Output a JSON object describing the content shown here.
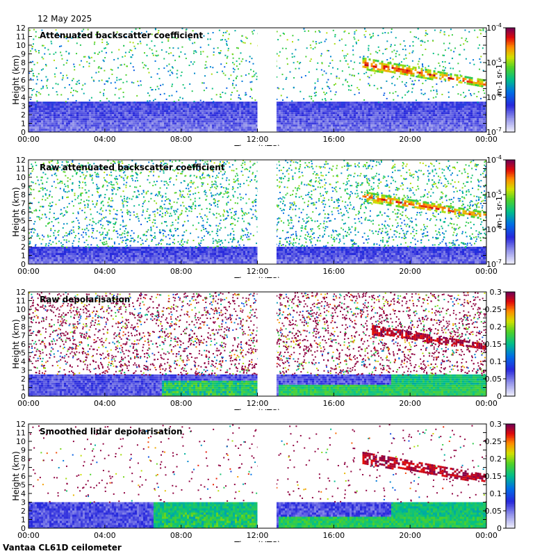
{
  "date_label": "12 May 2025",
  "footer": "Vantaa CL61D ceilometer",
  "chart_data": [
    {
      "type": "heatmap",
      "title": "Attenuated backscatter coefficient",
      "xlabel": "Time (UTC)",
      "ylabel": "Height (km)",
      "x_ticks": [
        "00:00",
        "04:00",
        "08:00",
        "12:00",
        "16:00",
        "20:00",
        "00:00"
      ],
      "x_range_hours": [
        0,
        24
      ],
      "y_ticks": [
        0,
        1,
        2,
        3,
        4,
        5,
        6,
        7,
        8,
        9,
        10,
        11,
        12
      ],
      "ylim": [
        0,
        12
      ],
      "data_gap_hours": [
        12.0,
        13.0
      ],
      "colorbar": {
        "scale": "log",
        "range": [
          1e-07,
          0.0001
        ],
        "ticks": [
          "10-7",
          "10-6",
          "10-5",
          "10-4"
        ],
        "units": "m-1 sr-1"
      },
      "features": {
        "boundary_layer_top_km": 3.5,
        "noise_density": 0.25,
        "cloud_layer": {
          "start_h": 17.5,
          "end_h": 24,
          "top_km": [
            8.6,
            6.0
          ],
          "bottom_km": [
            7.3,
            5.3
          ]
        }
      }
    },
    {
      "type": "heatmap",
      "title": "Raw attenuated backscatter coefficient",
      "xlabel": "Time (UTC)",
      "ylabel": "Height (km)",
      "x_ticks": [
        "00:00",
        "04:00",
        "08:00",
        "12:00",
        "16:00",
        "20:00",
        "00:00"
      ],
      "x_range_hours": [
        0,
        24
      ],
      "y_ticks": [
        0,
        1,
        2,
        3,
        4,
        5,
        6,
        7,
        8,
        9,
        10,
        11,
        12
      ],
      "ylim": [
        0,
        12
      ],
      "data_gap_hours": [
        12.0,
        13.0
      ],
      "colorbar": {
        "scale": "log",
        "range": [
          1e-07,
          0.0001
        ],
        "ticks": [
          "10-7",
          "10-6",
          "10-5",
          "10-4"
        ],
        "units": "m-1 sr-1"
      },
      "features": {
        "boundary_layer_top_km": 2.0,
        "noise_density": 0.7,
        "cloud_layer": {
          "start_h": 17.5,
          "end_h": 24,
          "top_km": [
            8.4,
            6.0
          ],
          "bottom_km": [
            7.3,
            5.3
          ]
        }
      }
    },
    {
      "type": "heatmap",
      "title": "Raw depolarisation",
      "xlabel": "Time (UTC)",
      "ylabel": "Height (km)",
      "x_ticks": [
        "00:00",
        "04:00",
        "08:00",
        "12:00",
        "16:00",
        "20:00",
        "00:00"
      ],
      "x_range_hours": [
        0,
        24
      ],
      "y_ticks": [
        0,
        1,
        2,
        3,
        4,
        5,
        6,
        7,
        8,
        9,
        10,
        11,
        12
      ],
      "ylim": [
        0,
        12
      ],
      "data_gap_hours": [
        12.0,
        13.0
      ],
      "colorbar": {
        "scale": "linear",
        "range": [
          0,
          0.3
        ],
        "ticks": [
          "0",
          "0.05",
          "0.1",
          "0.15",
          "0.2",
          "0.25",
          "0.3"
        ]
      },
      "features": {
        "boundary_layer_top_km": 2.5,
        "noise_density": 0.85,
        "cloud_layer": {
          "start_h": 18.0,
          "end_h": 24,
          "top_km": [
            8.2,
            6.0
          ],
          "bottom_km": [
            7.2,
            5.4
          ]
        }
      }
    },
    {
      "type": "heatmap",
      "title": "Smoothed lidar depolarisation",
      "xlabel": "Time (UTC)",
      "ylabel": "Height (km)",
      "x_ticks": [
        "00:00",
        "04:00",
        "08:00",
        "12:00",
        "16:00",
        "20:00",
        "00:00"
      ],
      "x_range_hours": [
        0,
        24
      ],
      "y_ticks": [
        0,
        1,
        2,
        3,
        4,
        5,
        6,
        7,
        8,
        9,
        10,
        11,
        12
      ],
      "ylim": [
        0,
        12
      ],
      "data_gap_hours": [
        12.0,
        13.0
      ],
      "colorbar": {
        "scale": "linear",
        "range": [
          0,
          0.3
        ],
        "ticks": [
          "0",
          "0.05",
          "0.1",
          "0.15",
          "0.2",
          "0.25",
          "0.3"
        ]
      },
      "features": {
        "boundary_layer_top_km": 3.0,
        "noise_density": 0.12,
        "cloud_layer": {
          "start_h": 17.5,
          "end_h": 24,
          "top_km": [
            8.8,
            6.2
          ],
          "bottom_km": [
            7.5,
            5.3
          ]
        }
      }
    }
  ]
}
